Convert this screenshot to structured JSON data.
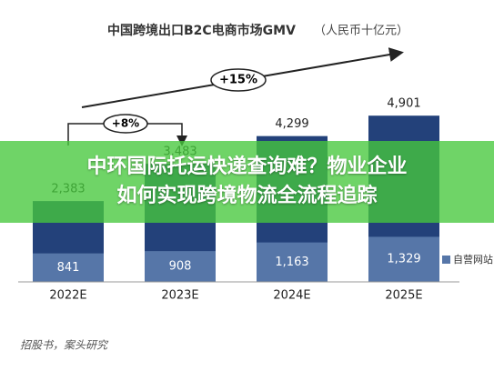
{
  "chart_data": {
    "type": "bar",
    "title": "中国跨境出口B2C电商市场GMV",
    "subtitle": "（人民币十亿元）",
    "categories": [
      "2022E",
      "2023E",
      "2024E",
      "2025E"
    ],
    "totals": {
      "color": "#23417a",
      "values": [
        2383,
        3483,
        4299,
        4901
      ],
      "value_labels": [
        "2,383",
        "3,483",
        "4,299",
        "4,901"
      ]
    },
    "series": [
      {
        "name": "自营网站",
        "color": "#5676a8",
        "values": [
          841,
          908,
          1163,
          1329
        ],
        "value_labels": [
          "841",
          "908",
          "1,163",
          "1,329"
        ]
      }
    ],
    "annotations": [
      "+8%",
      "+15%"
    ],
    "source": "招股书，案头研究"
  },
  "banner": {
    "lines": [
      "中环国际托运快递查询难？物业企业",
      "如何实现跨境物流全流程追踪"
    ]
  }
}
